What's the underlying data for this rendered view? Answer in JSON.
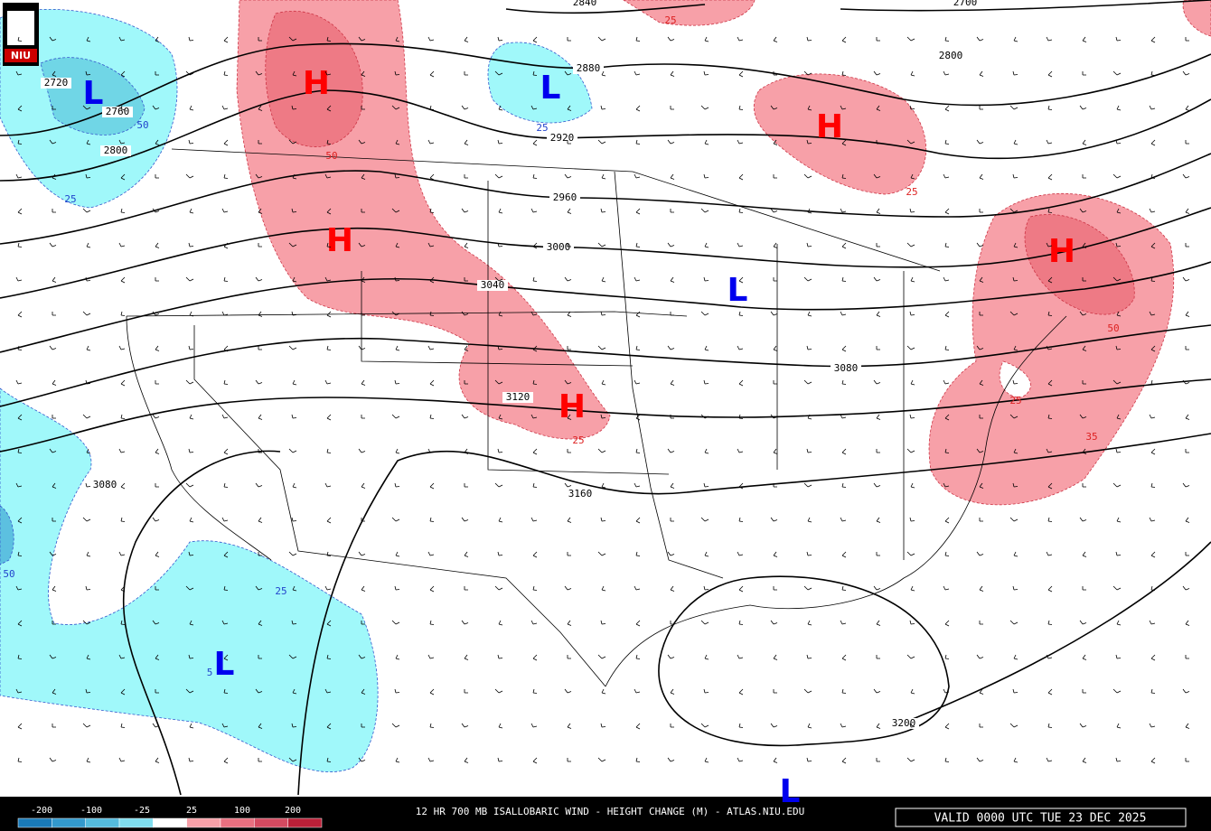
{
  "logo": "NIU",
  "contour_labels": [
    "2720",
    "2760",
    "2800",
    "2840",
    "2880",
    "2920",
    "2960",
    "3000",
    "3040",
    "3080",
    "3120",
    "3160",
    "3200",
    "2800",
    "2700",
    "3080"
  ],
  "change_labels": [
    "50",
    "25",
    "25",
    "50",
    "25",
    "25",
    "35",
    "25",
    "25",
    "50",
    "25",
    "50",
    "5"
  ],
  "centers": [
    "H",
    "H",
    "H",
    "H",
    "H",
    "L",
    "L",
    "L",
    "L",
    "L"
  ],
  "legend": {
    "colors": [
      "#1a7ab8",
      "#3399cc",
      "#55bbdd",
      "#80ddee",
      "#ffffff",
      "#f7a0a8",
      "#e87080",
      "#d44a60",
      "#bb2038"
    ],
    "ticks": [
      "-200",
      "-100",
      "-25",
      "25",
      "100",
      "200"
    ]
  },
  "footer": {
    "title": "12 HR 700 MB ISALLOBARIC WIND - HEIGHT CHANGE (M) - ATLAS.NIU.EDU",
    "valid": "VALID 0000 UTC TUE 23 DEC 2025"
  }
}
